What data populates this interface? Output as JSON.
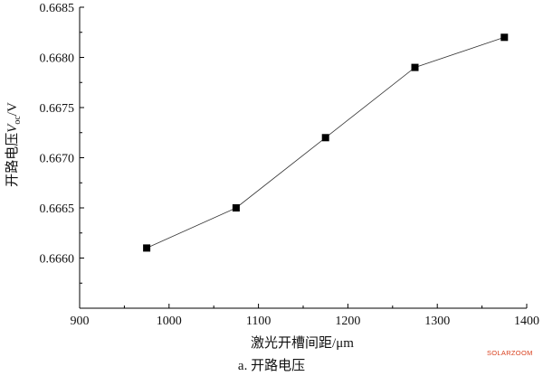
{
  "chart_data": {
    "type": "line",
    "xlabel": "激光开槽间距/μm",
    "ylabel": {
      "prefix": "开路电压",
      "variable": "V",
      "subscript": "oc",
      "suffix": "/V"
    },
    "caption": "a. 开路电压",
    "xlim": [
      900,
      1400
    ],
    "ylim": [
      0.6655,
      0.6685
    ],
    "x_ticks": [
      900,
      1000,
      1100,
      1200,
      1300,
      1400
    ],
    "x_tick_labels": [
      "900",
      "1000",
      "1100",
      "1200",
      "1300",
      "1400"
    ],
    "y_ticks": [
      0.666,
      0.6665,
      0.667,
      0.6675,
      0.668,
      0.6685
    ],
    "y_tick_labels": [
      "0.6660",
      "0.6665",
      "0.6670",
      "0.6675",
      "0.6680",
      "0.6685"
    ],
    "grid": false,
    "marker": "square",
    "series": [
      {
        "x": [
          975,
          1075,
          1175,
          1275,
          1375
        ],
        "values": [
          0.6661,
          0.6665,
          0.6672,
          0.6679,
          0.6682
        ]
      }
    ]
  },
  "watermark": {
    "text": "SOLARZOOM",
    "color": "#d9401e"
  }
}
